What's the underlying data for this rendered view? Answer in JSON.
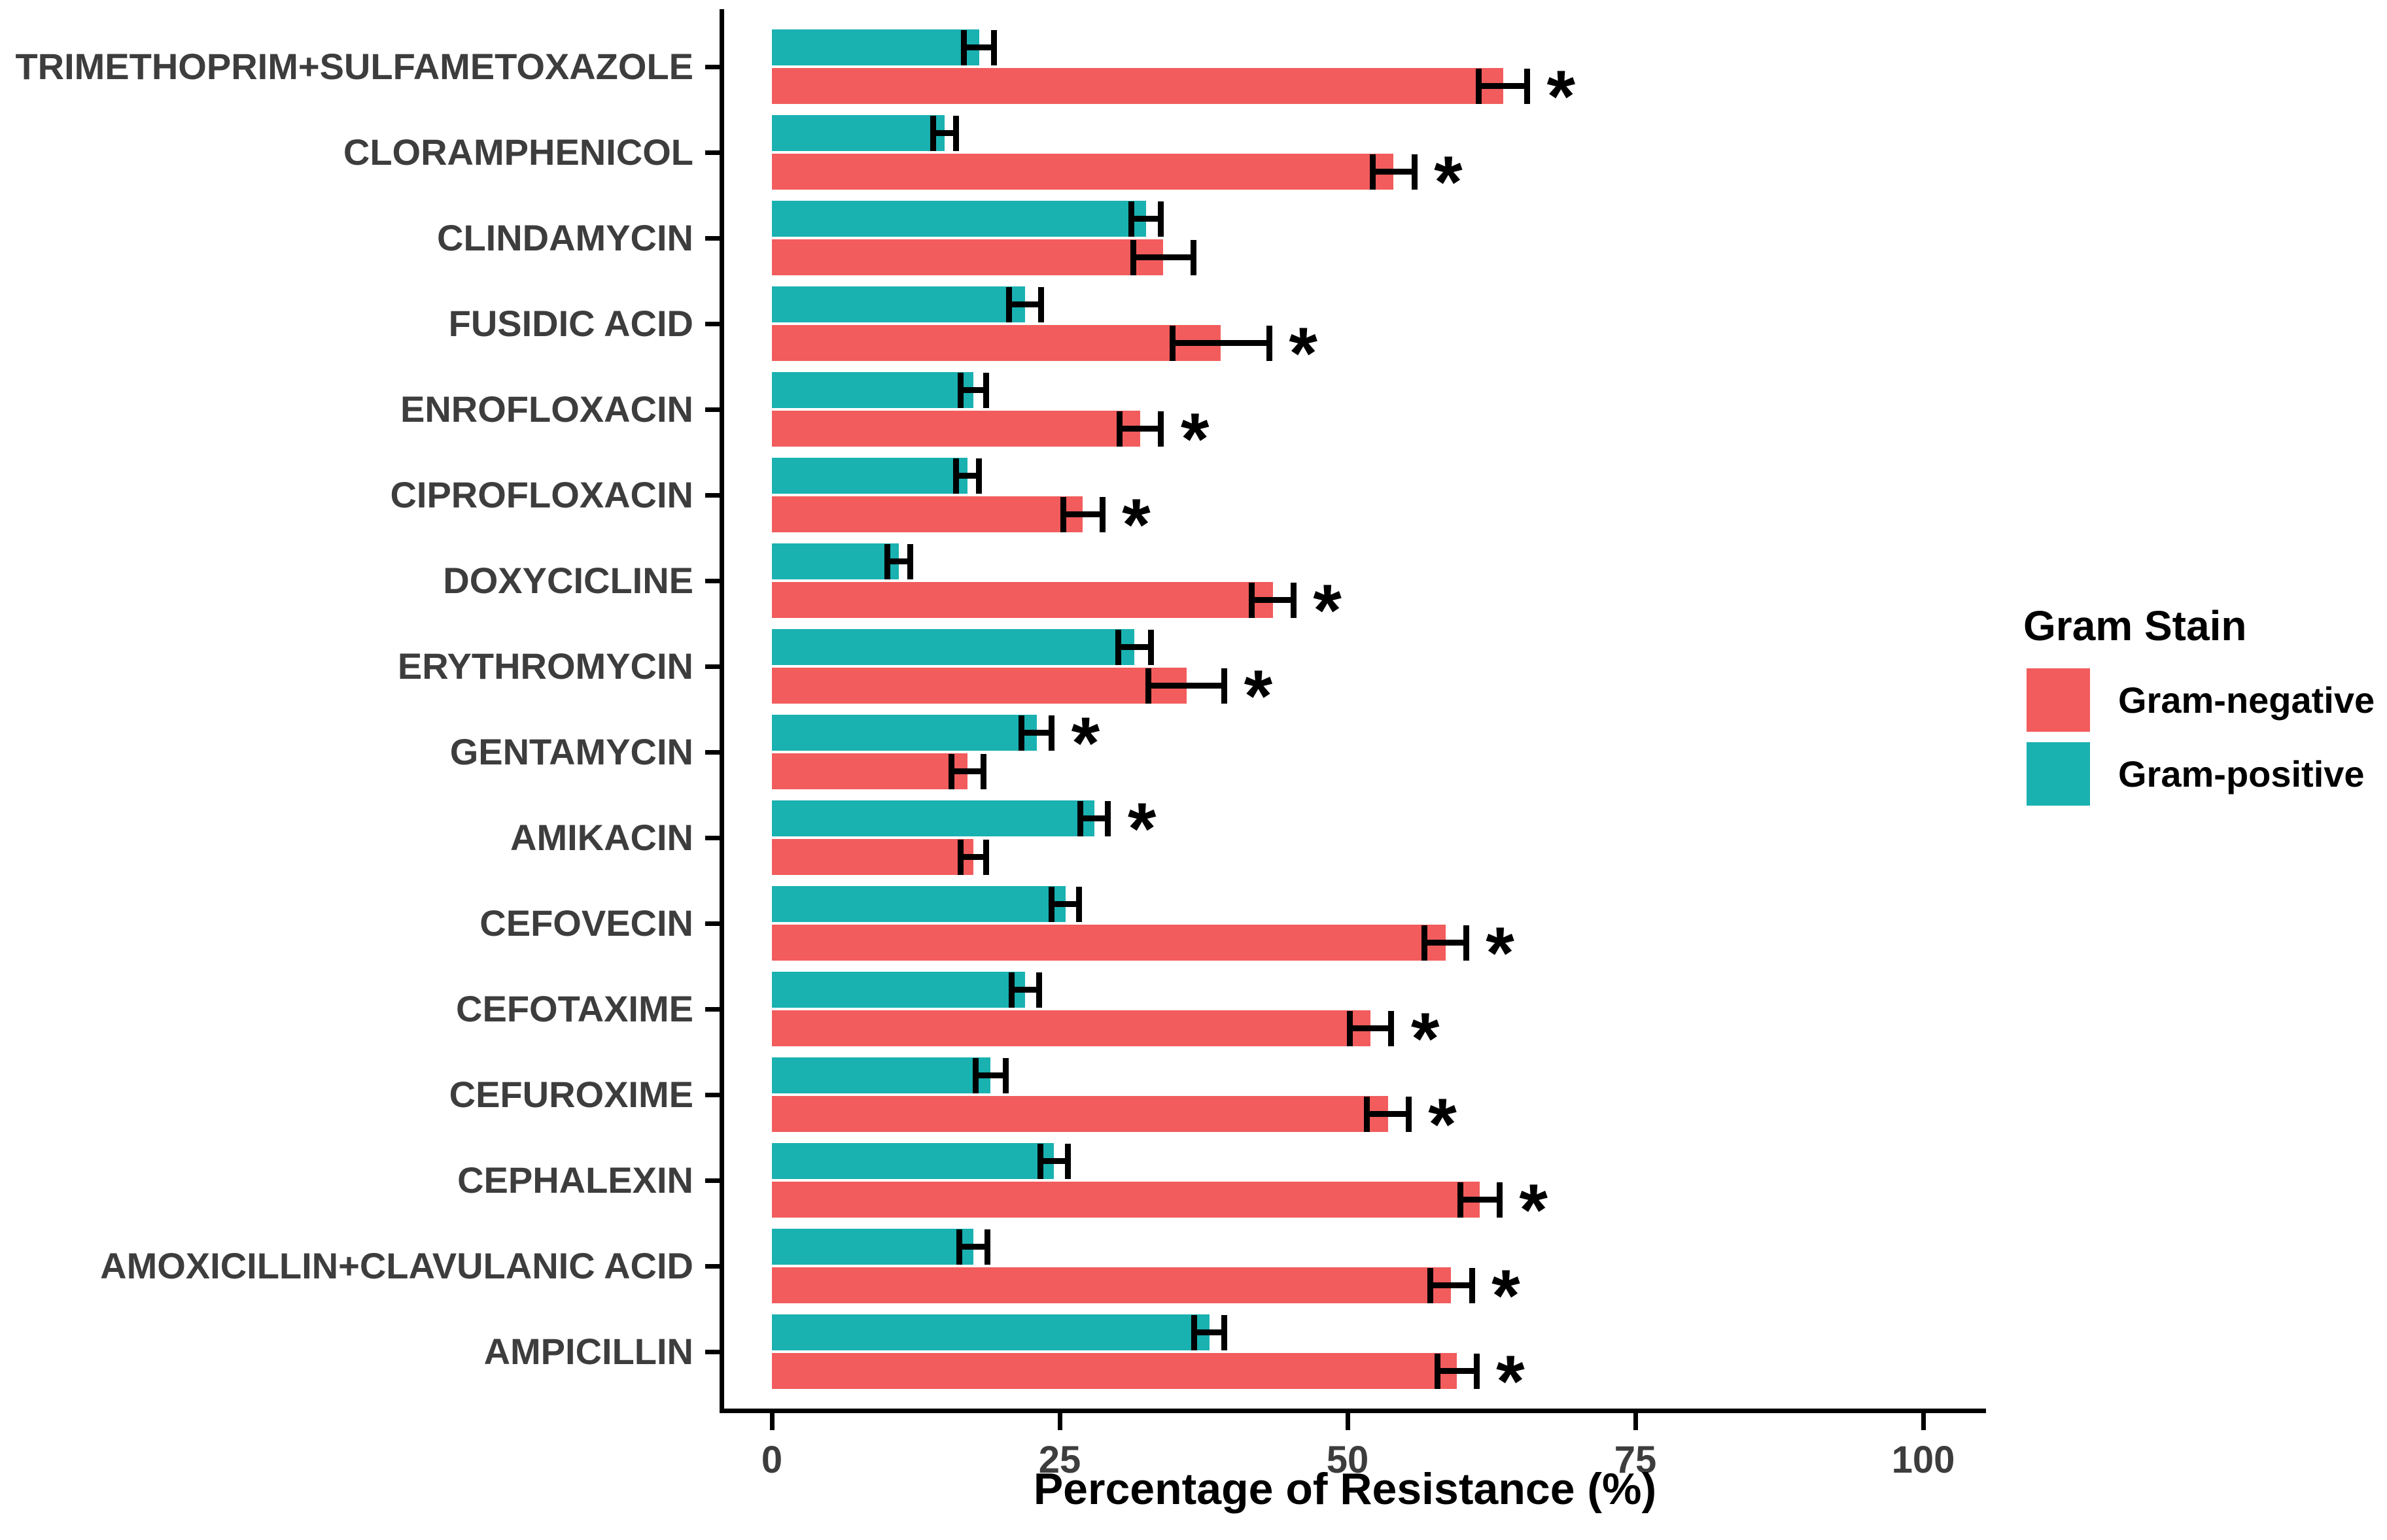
{
  "chart_data": {
    "type": "bar",
    "orientation": "horizontal",
    "title": "",
    "xlabel": "Percentage of Resistance (%)",
    "ylabel": "",
    "xlim": [
      0,
      105
    ],
    "xticks": [
      "0",
      "25",
      "50",
      "75",
      "100"
    ],
    "xtick_values": [
      0,
      25,
      50,
      75,
      100
    ],
    "grid": false,
    "significance_marker": "*",
    "bar_layout": "Gram-positive bar drawn above Gram-negative bar within each category; error bars on every bar; asterisk marks significant bars",
    "legend": {
      "title": "Gram Stain",
      "position": "right",
      "entries": [
        {
          "label": "Gram-negative",
          "color": "#F25C5C"
        },
        {
          "label": "Gram-positive",
          "color": "#1AB1B1"
        }
      ]
    },
    "categories": [
      "TRIMETHOPRIM+SULFAMETOXAZOLE",
      "CLORAMPHENICOL",
      "CLINDAMYCIN",
      "FUSIDIC ACID",
      "ENROFLOXACIN",
      "CIPROFLOXACIN",
      "DOXYCICLINE",
      "ERYTHROMYCIN",
      "GENTAMYCIN",
      "AMIKACIN",
      "CEFOVECIN",
      "CEFOTAXIME",
      "CEFUROXIME",
      "CEPHALEXIN",
      "AMOXICILLIN+CLAVULANIC ACID",
      "AMPICILLIN"
    ],
    "series": [
      {
        "name": "Gram-positive",
        "color": "#1AB1B1",
        "values": [
          18,
          15,
          32.5,
          22,
          17.5,
          17,
          11,
          31.5,
          23,
          28,
          25.5,
          22,
          19,
          24.5,
          17.5,
          38
        ],
        "errors": [
          1.3,
          1.0,
          1.3,
          1.4,
          1.1,
          1.0,
          1.0,
          1.4,
          1.3,
          1.2,
          1.2,
          1.2,
          1.3,
          1.2,
          1.2,
          1.3
        ],
        "significant": [
          false,
          false,
          false,
          false,
          false,
          false,
          false,
          false,
          true,
          true,
          false,
          false,
          false,
          false,
          false,
          false
        ]
      },
      {
        "name": "Gram-negative",
        "color": "#F25C5C",
        "values": [
          63.5,
          54,
          34,
          39,
          32,
          27,
          43.5,
          36,
          17,
          17.5,
          58.5,
          52,
          53.5,
          61.5,
          59,
          59.5
        ],
        "errors": [
          2.1,
          1.8,
          2.6,
          4.2,
          1.8,
          1.7,
          1.8,
          3.3,
          1.4,
          1.1,
          1.8,
          1.8,
          1.8,
          1.7,
          1.8,
          1.7
        ],
        "significant": [
          true,
          true,
          false,
          true,
          true,
          true,
          true,
          true,
          false,
          false,
          true,
          true,
          true,
          true,
          true,
          true
        ]
      }
    ]
  }
}
